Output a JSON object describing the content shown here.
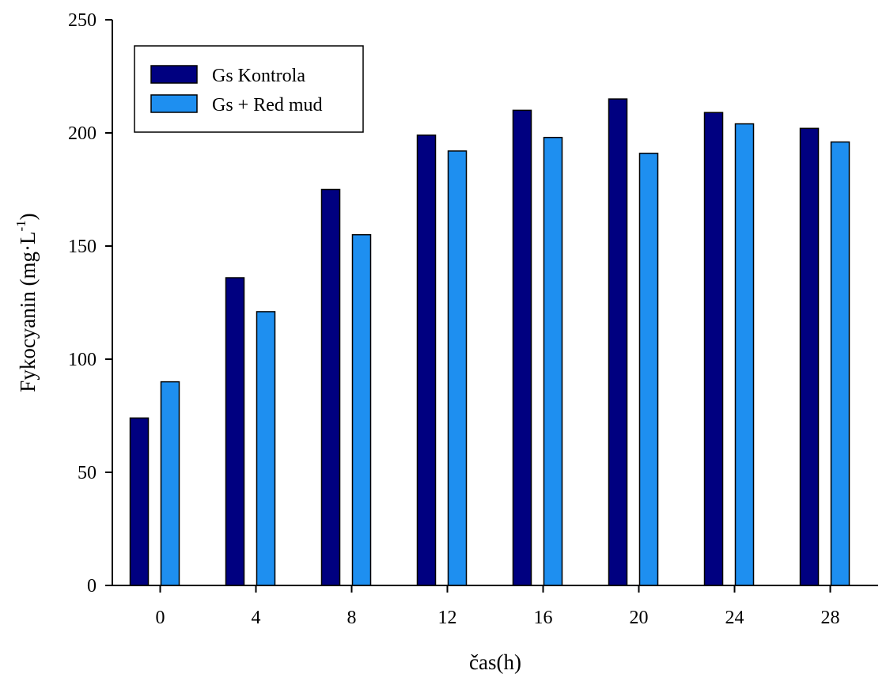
{
  "chart_data": {
    "type": "bar",
    "title": "",
    "xlabel": "čas(h)",
    "ylabel": "Fykocyanin (mg·L",
    "ylabel_superscript": "-1",
    "ylabel_suffix": ")",
    "categories": [
      "0",
      "4",
      "8",
      "12",
      "16",
      "20",
      "24",
      "28"
    ],
    "series": [
      {
        "name": "Gs Kontrola",
        "color": "#000080",
        "values": [
          74,
          136,
          175,
          199,
          210,
          215,
          209,
          202
        ]
      },
      {
        "name": "Gs + Red mud",
        "color": "#1e8ff0",
        "values": [
          90,
          121,
          155,
          192,
          198,
          191,
          204,
          196
        ]
      }
    ],
    "ylim": [
      0,
      250
    ],
    "yticks": [
      0,
      50,
      100,
      150,
      200,
      250
    ],
    "grid": false,
    "legend_position": "top-left",
    "bar_outline_color": "#000000"
  }
}
